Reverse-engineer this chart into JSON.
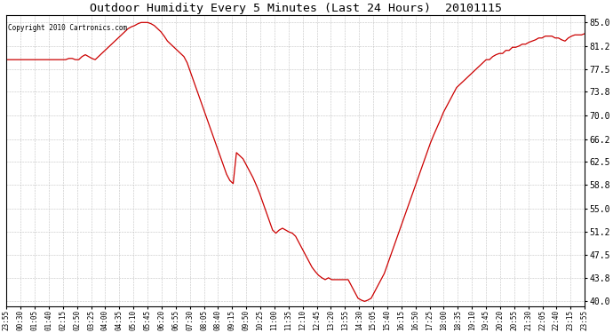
{
  "title": "Outdoor Humidity Every 5 Minutes (Last 24 Hours)  20101115",
  "copyright": "Copyright 2010 Cartronics.com",
  "line_color": "#cc0000",
  "background_color": "#ffffff",
  "grid_color": "#bbbbbb",
  "yticks": [
    40.0,
    43.8,
    47.5,
    51.2,
    55.0,
    58.8,
    62.5,
    66.2,
    70.0,
    73.8,
    77.5,
    81.2,
    85.0
  ],
  "ylim": [
    39.2,
    86.2
  ],
  "x_labels": [
    "23:55",
    "00:30",
    "01:05",
    "01:40",
    "02:15",
    "02:50",
    "03:25",
    "04:00",
    "04:35",
    "05:10",
    "05:45",
    "06:20",
    "06:55",
    "07:30",
    "08:05",
    "08:40",
    "09:15",
    "09:50",
    "10:25",
    "11:00",
    "11:35",
    "12:10",
    "12:45",
    "13:20",
    "13:55",
    "14:30",
    "15:05",
    "15:40",
    "16:15",
    "16:50",
    "17:25",
    "18:00",
    "18:35",
    "19:10",
    "19:45",
    "20:20",
    "20:55",
    "21:30",
    "22:05",
    "22:40",
    "23:15",
    "23:55"
  ],
  "humidity_data": [
    79.0,
    79.0,
    79.0,
    79.0,
    79.0,
    79.0,
    79.0,
    79.0,
    79.0,
    79.0,
    79.0,
    79.0,
    79.0,
    79.0,
    79.0,
    79.0,
    79.0,
    79.0,
    79.0,
    79.2,
    79.2,
    79.0,
    79.0,
    79.5,
    79.8,
    79.5,
    79.2,
    79.0,
    79.5,
    80.0,
    80.5,
    81.0,
    81.5,
    82.0,
    82.5,
    83.0,
    83.5,
    84.0,
    84.3,
    84.5,
    84.8,
    85.0,
    85.0,
    85.0,
    84.8,
    84.5,
    84.0,
    83.5,
    82.8,
    82.0,
    81.5,
    81.0,
    80.5,
    80.0,
    79.5,
    78.5,
    77.0,
    75.5,
    74.0,
    72.5,
    71.0,
    69.5,
    68.0,
    66.5,
    65.0,
    63.5,
    62.0,
    60.5,
    59.5,
    59.0,
    64.0,
    63.5,
    63.0,
    62.0,
    61.0,
    60.0,
    58.8,
    57.5,
    56.0,
    54.5,
    53.0,
    51.5,
    51.0,
    51.5,
    51.8,
    51.5,
    51.2,
    51.0,
    50.5,
    49.5,
    48.5,
    47.5,
    46.5,
    45.5,
    44.8,
    44.2,
    43.8,
    43.5,
    43.8,
    43.5,
    43.5,
    43.5,
    43.5,
    43.5,
    43.5,
    42.5,
    41.5,
    40.5,
    40.2,
    40.0,
    40.2,
    40.5,
    41.5,
    42.5,
    43.5,
    44.5,
    46.0,
    47.5,
    49.0,
    50.5,
    52.0,
    53.5,
    55.0,
    56.5,
    58.0,
    59.5,
    61.0,
    62.5,
    64.0,
    65.5,
    66.8,
    68.0,
    69.2,
    70.5,
    71.5,
    72.5,
    73.5,
    74.5,
    75.0,
    75.5,
    76.0,
    76.5,
    77.0,
    77.5,
    78.0,
    78.5,
    79.0,
    79.0,
    79.5,
    79.8,
    80.0,
    80.0,
    80.5,
    80.5,
    81.0,
    81.0,
    81.2,
    81.5,
    81.5,
    81.8,
    82.0,
    82.2,
    82.5,
    82.5,
    82.8,
    82.8,
    82.8,
    82.5,
    82.5,
    82.2,
    82.0,
    82.5,
    82.8,
    83.0,
    83.0,
    83.0,
    83.2
  ],
  "figwidth": 6.9,
  "figheight": 3.75,
  "dpi": 100
}
